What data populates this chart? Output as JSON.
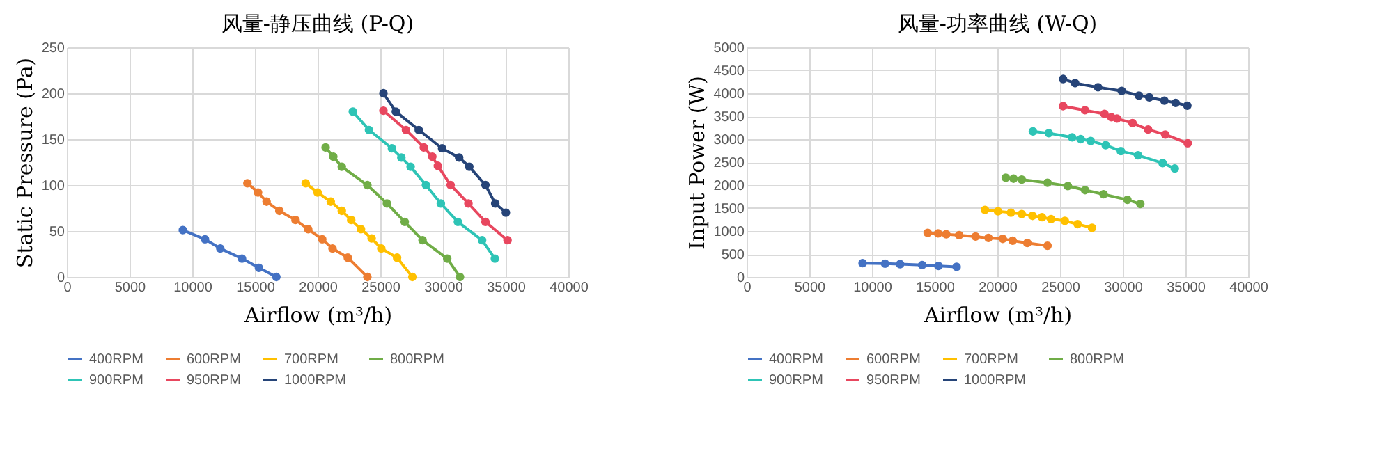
{
  "chart_data": [
    {
      "type": "line",
      "title": "风量-静压曲线 (P-Q)",
      "xlabel": "Airflow (m³/h)",
      "ylabel": "Static Pressure (Pa)",
      "xlim": [
        0,
        40000
      ],
      "xticks": [
        0,
        5000,
        10000,
        15000,
        20000,
        25000,
        30000,
        35000,
        40000
      ],
      "ylim": [
        0,
        250
      ],
      "yticks": [
        0,
        50,
        100,
        150,
        200,
        250
      ],
      "grid": true,
      "legend": "bottom",
      "marker": "circle",
      "series": [
        {
          "name": "400RPM",
          "color": "#4472c4",
          "x": [
            9250,
            11020,
            12240,
            13970,
            15320,
            16710
          ],
          "values": [
            51,
            41,
            31,
            20,
            10,
            0
          ]
        },
        {
          "name": "600RPM",
          "color": "#ed7d31",
          "x": [
            14400,
            15250,
            15930,
            16950,
            18240,
            19250,
            20370,
            21190,
            22410,
            23970
          ],
          "values": [
            102,
            92,
            82,
            72,
            62,
            52,
            41,
            31,
            21,
            0
          ]
        },
        {
          "name": "700RPM",
          "color": "#ffc000",
          "x": [
            19050,
            20000,
            21050,
            21930,
            22680,
            23460,
            24310,
            25080,
            26340,
            27560
          ],
          "values": [
            102,
            92,
            82,
            72,
            62,
            52,
            42,
            31,
            21,
            0
          ]
        },
        {
          "name": "800RPM",
          "color": "#70ad47",
          "x": [
            20640,
            21250,
            21930,
            23970,
            25530,
            26950,
            28370,
            30340,
            31360
          ],
          "values": [
            141,
            131,
            120,
            100,
            80,
            60,
            40,
            20,
            0
          ]
        },
        {
          "name": "900RPM",
          "color": "#2ec4b6",
          "x": [
            22810,
            24100,
            25930,
            26680,
            27420,
            28640,
            29830,
            31190,
            33120,
            34140
          ],
          "values": [
            180,
            160,
            140,
            130,
            120,
            100,
            80,
            60,
            40,
            20
          ]
        },
        {
          "name": "950RPM",
          "color": "#e8475f",
          "x": [
            25250,
            27050,
            28470,
            29150,
            29590,
            30610,
            32030,
            33390,
            35150
          ],
          "values": [
            181,
            160,
            141,
            131,
            121,
            100,
            80,
            60,
            40
          ]
        },
        {
          "name": "1000RPM",
          "color": "#264478",
          "x": [
            25250,
            26240,
            28070,
            29930,
            31290,
            32100,
            33390,
            34170,
            35020
          ],
          "values": [
            200,
            180,
            160,
            140,
            130,
            120,
            100,
            80,
            70
          ]
        }
      ]
    },
    {
      "type": "line",
      "title": "风量-功率曲线 (W-Q)",
      "xlabel": "Airflow (m³/h)",
      "ylabel": "Input Power (W)",
      "xlim": [
        0,
        40000
      ],
      "xticks": [
        0,
        5000,
        10000,
        15000,
        20000,
        25000,
        30000,
        35000,
        40000
      ],
      "ylim": [
        0,
        5000
      ],
      "yticks": [
        0,
        500,
        1000,
        1500,
        2000,
        2500,
        3000,
        3500,
        4000,
        4500,
        5000
      ],
      "grid": true,
      "legend": "bottom",
      "marker": "circle",
      "series": [
        {
          "name": "400RPM",
          "color": "#4472c4",
          "x": [
            9250,
            11040,
            12240,
            14000,
            15300,
            16750
          ],
          "values": [
            300,
            290,
            280,
            260,
            240,
            220
          ]
        },
        {
          "name": "600RPM",
          "color": "#ed7d31",
          "x": [
            14440,
            15270,
            15920,
            16950,
            18260,
            19290,
            20430,
            21220,
            22390,
            24000
          ],
          "values": [
            960,
            950,
            930,
            910,
            880,
            850,
            830,
            790,
            740,
            680
          ]
        },
        {
          "name": "700RPM",
          "color": "#ffc000",
          "x": [
            19010,
            20050,
            21080,
            21940,
            22800,
            23560,
            24280,
            25380,
            26400,
            27550
          ],
          "values": [
            1460,
            1430,
            1400,
            1370,
            1330,
            1300,
            1260,
            1220,
            1150,
            1070
          ]
        },
        {
          "name": "800RPM",
          "color": "#70ad47",
          "x": [
            20670,
            21290,
            21940,
            24000,
            25620,
            27000,
            28470,
            30370,
            31400
          ],
          "values": [
            2160,
            2140,
            2120,
            2050,
            1980,
            1890,
            1800,
            1680,
            1590
          ]
        },
        {
          "name": "900RPM",
          "color": "#2ec4b6",
          "x": [
            22830,
            24100,
            25960,
            26650,
            27440,
            28640,
            29850,
            31220,
            33180,
            34150
          ],
          "values": [
            3170,
            3130,
            3040,
            3000,
            2960,
            2870,
            2740,
            2650,
            2480,
            2360
          ]
        },
        {
          "name": "950RPM",
          "color": "#e8475f",
          "x": [
            25240,
            26990,
            28540,
            29090,
            29540,
            30780,
            32020,
            33390,
            35180
          ],
          "values": [
            3720,
            3630,
            3550,
            3480,
            3450,
            3350,
            3210,
            3100,
            2910
          ]
        },
        {
          "name": "1000RPM",
          "color": "#264478",
          "x": [
            25240,
            26200,
            28030,
            29920,
            31290,
            32120,
            33320,
            34220,
            35150
          ],
          "values": [
            4310,
            4220,
            4130,
            4050,
            3950,
            3910,
            3840,
            3790,
            3730
          ]
        }
      ]
    }
  ]
}
